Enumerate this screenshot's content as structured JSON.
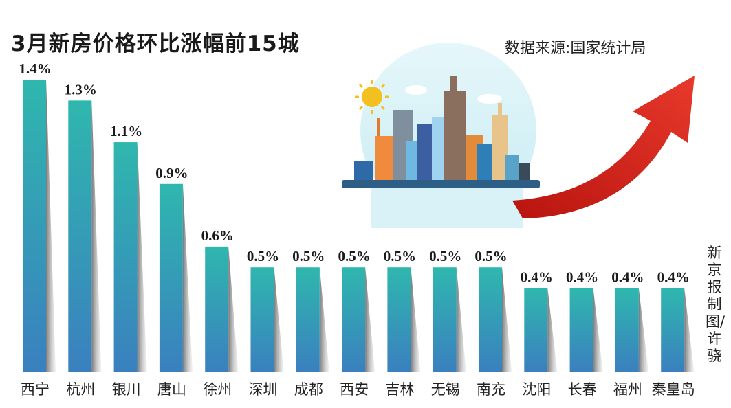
{
  "header": {
    "title": "3月新房价格环比涨幅前15城",
    "source": "数据来源:国家统计局",
    "credit": "新京报制图/许骁"
  },
  "colors": {
    "bar_top": "#2fb7ae",
    "bar_bottom": "#3a80bf",
    "shadow": "#8a8a8a",
    "arrow": "#d9251d",
    "sky": "#d7f1f6"
  },
  "illustration": {
    "icon": "city-skyline-with-rising-arrow-icon"
  },
  "chart_data": {
    "type": "bar",
    "title": "3月新房价格环比涨幅前15城",
    "categories": [
      "西宁",
      "杭州",
      "银川",
      "唐山",
      "徐州",
      "深圳",
      "成都",
      "西安",
      "吉林",
      "无锡",
      "南充",
      "沈阳",
      "长春",
      "福州",
      "秦皇岛"
    ],
    "values": [
      1.4,
      1.3,
      1.1,
      0.9,
      0.6,
      0.5,
      0.5,
      0.5,
      0.5,
      0.5,
      0.5,
      0.4,
      0.4,
      0.4,
      0.4
    ],
    "value_labels": [
      "1.4%",
      "1.3%",
      "1.1%",
      "0.9%",
      "0.6%",
      "0.5%",
      "0.5%",
      "0.5%",
      "0.5%",
      "0.5%",
      "0.5%",
      "0.4%",
      "0.4%",
      "0.4%",
      "0.4%"
    ],
    "unit": "%",
    "xlabel": "",
    "ylabel": "",
    "grid": false,
    "legend": "none"
  }
}
